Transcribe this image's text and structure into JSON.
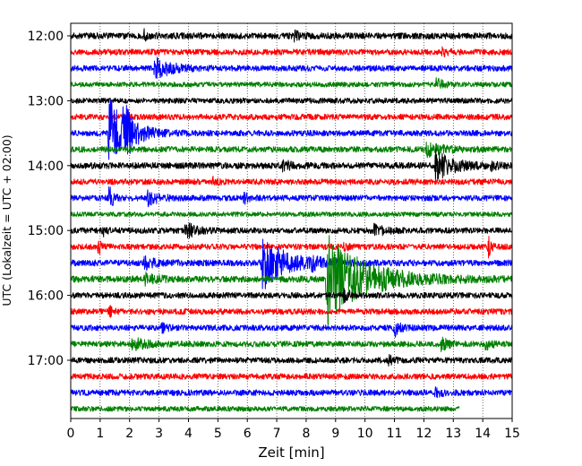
{
  "chart_data": {
    "type": "line",
    "title": "",
    "xlabel": "Zeit  [min]",
    "ylabel": "UTC (Lokalzeit = UTC + 02:00)",
    "xlim": [
      0,
      15
    ],
    "x_ticks": [
      "0",
      "1",
      "2",
      "3",
      "4",
      "5",
      "6",
      "7",
      "8",
      "9",
      "10",
      "11",
      "12",
      "13",
      "14",
      "15"
    ],
    "y_ticks": [
      "12:00",
      "13:00",
      "14:00",
      "15:00",
      "16:00",
      "17:00"
    ],
    "grid": "vertical-dotted",
    "trace_colors": [
      "#000000",
      "#ff0000",
      "#0000ff",
      "#008000"
    ],
    "traces": [
      {
        "start": "12:00",
        "end_min": 15,
        "color": "#000000",
        "noise": 3.5,
        "events": [
          {
            "t": 2.5,
            "amp": 5,
            "dur": 0.3
          },
          {
            "t": 7.6,
            "amp": 4,
            "dur": 0.4
          }
        ]
      },
      {
        "start": "12:15",
        "end_min": 15,
        "color": "#ff0000",
        "noise": 3.2,
        "events": [
          {
            "t": 12.6,
            "amp": 4,
            "dur": 0.4
          }
        ]
      },
      {
        "start": "12:30",
        "end_min": 15,
        "color": "#0000ff",
        "noise": 3.2,
        "events": [
          {
            "t": 2.85,
            "amp": 14,
            "dur": 1.0
          }
        ]
      },
      {
        "start": "12:45",
        "end_min": 15,
        "color": "#008000",
        "noise": 2.8,
        "events": [
          {
            "t": 12.4,
            "amp": 7,
            "dur": 0.5
          }
        ]
      },
      {
        "start": "13:00",
        "end_min": 15,
        "color": "#000000",
        "noise": 3.0,
        "events": []
      },
      {
        "start": "13:15",
        "end_min": 15,
        "color": "#ff0000",
        "noise": 3.2,
        "events": []
      },
      {
        "start": "13:30",
        "end_min": 15,
        "color": "#0000ff",
        "noise": 3.2,
        "events": [
          {
            "t": 1.3,
            "amp": 40,
            "dur": 1.2
          },
          {
            "t": 1.8,
            "amp": 26,
            "dur": 0.6
          }
        ]
      },
      {
        "start": "13:45",
        "end_min": 15,
        "color": "#008000",
        "noise": 3.2,
        "events": [
          {
            "t": 12.1,
            "amp": 7,
            "dur": 1.2
          }
        ]
      },
      {
        "start": "14:00",
        "end_min": 15,
        "color": "#000000",
        "noise": 3.5,
        "events": [
          {
            "t": 12.4,
            "amp": 16,
            "dur": 1.2
          },
          {
            "t": 7.2,
            "amp": 5,
            "dur": 0.6
          },
          {
            "t": 14.3,
            "amp": 5,
            "dur": 0.3
          }
        ]
      },
      {
        "start": "14:15",
        "end_min": 15,
        "color": "#ff0000",
        "noise": 3.2,
        "events": [
          {
            "t": 4.8,
            "amp": 4,
            "dur": 0.4
          }
        ]
      },
      {
        "start": "14:30",
        "end_min": 15,
        "color": "#0000ff",
        "noise": 3.2,
        "events": [
          {
            "t": 1.3,
            "amp": 14,
            "dur": 0.3
          },
          {
            "t": 2.6,
            "amp": 8,
            "dur": 0.8
          },
          {
            "t": 5.9,
            "amp": 5,
            "dur": 0.3
          }
        ]
      },
      {
        "start": "14:45",
        "end_min": 15,
        "color": "#008000",
        "noise": 2.6,
        "events": []
      },
      {
        "start": "15:00",
        "end_min": 15,
        "color": "#000000",
        "noise": 3.2,
        "events": [
          {
            "t": 3.9,
            "amp": 9,
            "dur": 0.7
          },
          {
            "t": 10.3,
            "amp": 6,
            "dur": 0.8
          },
          {
            "t": 1.1,
            "amp": 5,
            "dur": 0.2
          }
        ]
      },
      {
        "start": "15:15",
        "end_min": 15,
        "color": "#ff0000",
        "noise": 3.2,
        "events": [
          {
            "t": 0.95,
            "amp": 12,
            "dur": 0.15
          },
          {
            "t": 14.2,
            "amp": 10,
            "dur": 0.2
          },
          {
            "t": 9.3,
            "amp": 4,
            "dur": 0.3
          }
        ]
      },
      {
        "start": "15:30",
        "end_min": 15,
        "color": "#0000ff",
        "noise": 3.4,
        "events": [
          {
            "t": 6.5,
            "amp": 30,
            "dur": 1.7
          },
          {
            "t": 2.5,
            "amp": 6,
            "dur": 0.8
          },
          {
            "t": 8.2,
            "amp": 5,
            "dur": 0.6
          }
        ]
      },
      {
        "start": "15:45",
        "end_min": 15,
        "color": "#008000",
        "noise": 3.6,
        "events": [
          {
            "t": 8.7,
            "amp": 50,
            "dur": 2.8
          },
          {
            "t": 2.5,
            "amp": 6,
            "dur": 0.8
          }
        ]
      },
      {
        "start": "16:00",
        "end_min": 15,
        "color": "#000000",
        "noise": 3.2,
        "events": [
          {
            "t": 9.3,
            "amp": 6,
            "dur": 0.5
          }
        ]
      },
      {
        "start": "16:15",
        "end_min": 15,
        "color": "#ff0000",
        "noise": 3.2,
        "events": [
          {
            "t": 1.3,
            "amp": 7,
            "dur": 0.2
          }
        ]
      },
      {
        "start": "16:30",
        "end_min": 15,
        "color": "#0000ff",
        "noise": 3.2,
        "events": [
          {
            "t": 11.0,
            "amp": 9,
            "dur": 0.4
          },
          {
            "t": 3.1,
            "amp": 4,
            "dur": 0.4
          }
        ]
      },
      {
        "start": "16:45",
        "end_min": 15,
        "color": "#008000",
        "noise": 3.2,
        "events": [
          {
            "t": 2.1,
            "amp": 7,
            "dur": 0.9
          },
          {
            "t": 12.6,
            "amp": 7,
            "dur": 0.5
          },
          {
            "t": 14.1,
            "amp": 5,
            "dur": 0.5
          }
        ]
      },
      {
        "start": "17:00",
        "end_min": 15,
        "color": "#000000",
        "noise": 3.2,
        "events": [
          {
            "t": 10.8,
            "amp": 4,
            "dur": 0.4
          }
        ]
      },
      {
        "start": "17:15",
        "end_min": 15,
        "color": "#ff0000",
        "noise": 3.2,
        "events": []
      },
      {
        "start": "17:30",
        "end_min": 15,
        "color": "#0000ff",
        "noise": 3.2,
        "events": [
          {
            "t": 12.4,
            "amp": 4,
            "dur": 0.5
          }
        ]
      },
      {
        "start": "17:45",
        "end_min": 13.2,
        "color": "#008000",
        "noise": 2.8,
        "events": []
      }
    ]
  }
}
